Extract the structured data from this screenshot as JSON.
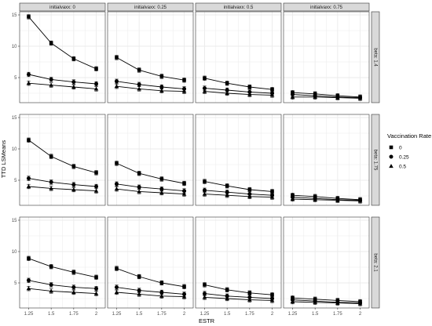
{
  "chart_data": {
    "type": "line",
    "facet_cols": {
      "variable": "initialvaxx",
      "levels": [
        "initialvaxx: 0",
        "initialvaxx: 0.25",
        "initialvaxx: 0.5",
        "initialvaxx: 0.75"
      ]
    },
    "facet_rows": {
      "variable": "beta",
      "levels": [
        "beta: 1.4",
        "beta: 1.75",
        "beta: 2.1"
      ]
    },
    "x": [
      1.25,
      1.5,
      1.75,
      2
    ],
    "x_tick_labels": [
      "1.25",
      "1.5",
      "1.75",
      "2"
    ],
    "xlim": [
      1.15,
      2.1
    ],
    "ylim": [
      1.0,
      15.5
    ],
    "y_ticks": [
      5,
      10,
      15
    ],
    "xlabel": "ESTR",
    "ylabel": "TTD LSMeans",
    "grid": true,
    "legend": {
      "title": "Vaccination Rate",
      "position": "right",
      "entries": [
        {
          "label": "0",
          "shape": "square"
        },
        {
          "label": "0.25",
          "shape": "circle"
        },
        {
          "label": "0.5",
          "shape": "triangle"
        }
      ]
    },
    "panels": [
      {
        "row": 0,
        "col": 0,
        "series": [
          {
            "rate": "0",
            "shape": "square",
            "values": [
              14.7,
              10.5,
              8.0,
              6.4
            ]
          },
          {
            "rate": "0.25",
            "shape": "circle",
            "values": [
              5.5,
              4.7,
              4.3,
              4.0
            ]
          },
          {
            "rate": "0.5",
            "shape": "triangle",
            "values": [
              4.1,
              3.8,
              3.5,
              3.2
            ]
          }
        ]
      },
      {
        "row": 0,
        "col": 1,
        "series": [
          {
            "rate": "0",
            "shape": "square",
            "values": [
              8.2,
              6.2,
              5.2,
              4.6
            ]
          },
          {
            "rate": "0.25",
            "shape": "circle",
            "values": [
              4.4,
              3.9,
              3.5,
              3.2
            ]
          },
          {
            "rate": "0.5",
            "shape": "triangle",
            "values": [
              3.6,
              3.2,
              2.9,
              2.8
            ]
          }
        ]
      },
      {
        "row": 0,
        "col": 2,
        "series": [
          {
            "rate": "0",
            "shape": "square",
            "values": [
              4.9,
              4.1,
              3.5,
              3.1
            ]
          },
          {
            "rate": "0.25",
            "shape": "circle",
            "values": [
              3.3,
              3.0,
              2.7,
              2.5
            ]
          },
          {
            "rate": "0.5",
            "shape": "triangle",
            "values": [
              2.8,
              2.5,
              2.3,
              2.2
            ]
          }
        ]
      },
      {
        "row": 0,
        "col": 3,
        "series": [
          {
            "rate": "0",
            "shape": "square",
            "values": [
              2.6,
              2.4,
              2.1,
              1.9
            ]
          },
          {
            "rate": "0.25",
            "shape": "circle",
            "values": [
              2.3,
              2.1,
              1.9,
              1.8
            ]
          },
          {
            "rate": "0.5",
            "shape": "triangle",
            "values": [
              1.9,
              1.9,
              1.8,
              1.7
            ]
          }
        ]
      },
      {
        "row": 1,
        "col": 0,
        "series": [
          {
            "rate": "0",
            "shape": "square",
            "values": [
              11.4,
              8.8,
              7.2,
              6.2
            ]
          },
          {
            "rate": "0.25",
            "shape": "circle",
            "values": [
              5.3,
              4.7,
              4.3,
              4.0
            ]
          },
          {
            "rate": "0.5",
            "shape": "triangle",
            "values": [
              4.0,
              3.7,
              3.5,
              3.3
            ]
          }
        ]
      },
      {
        "row": 1,
        "col": 1,
        "series": [
          {
            "rate": "0",
            "shape": "square",
            "values": [
              7.7,
              6.1,
              5.2,
              4.5
            ]
          },
          {
            "rate": "0.25",
            "shape": "circle",
            "values": [
              4.4,
              3.9,
              3.6,
              3.3
            ]
          },
          {
            "rate": "0.5",
            "shape": "triangle",
            "values": [
              3.6,
              3.2,
              3.0,
              2.8
            ]
          }
        ]
      },
      {
        "row": 1,
        "col": 2,
        "series": [
          {
            "rate": "0",
            "shape": "square",
            "values": [
              4.8,
              4.1,
              3.5,
              3.2
            ]
          },
          {
            "rate": "0.25",
            "shape": "circle",
            "values": [
              3.4,
              3.1,
              2.8,
              2.6
            ]
          },
          {
            "rate": "0.5",
            "shape": "triangle",
            "values": [
              2.8,
              2.6,
              2.4,
              2.3
            ]
          }
        ]
      },
      {
        "row": 1,
        "col": 3,
        "series": [
          {
            "rate": "0",
            "shape": "square",
            "values": [
              2.6,
              2.4,
              2.1,
              1.9
            ]
          },
          {
            "rate": "0.25",
            "shape": "circle",
            "values": [
              2.3,
              2.1,
              1.9,
              1.8
            ]
          },
          {
            "rate": "0.5",
            "shape": "triangle",
            "values": [
              2.0,
              1.9,
              1.8,
              1.7
            ]
          }
        ]
      },
      {
        "row": 2,
        "col": 0,
        "series": [
          {
            "rate": "0",
            "shape": "square",
            "values": [
              8.9,
              7.6,
              6.7,
              5.9
            ]
          },
          {
            "rate": "0.25",
            "shape": "circle",
            "values": [
              5.4,
              4.7,
              4.3,
              4.1
            ]
          },
          {
            "rate": "0.5",
            "shape": "triangle",
            "values": [
              4.1,
              3.7,
              3.5,
              3.3
            ]
          }
        ]
      },
      {
        "row": 2,
        "col": 1,
        "series": [
          {
            "rate": "0",
            "shape": "square",
            "values": [
              7.3,
              6.0,
              5.0,
              4.4
            ]
          },
          {
            "rate": "0.25",
            "shape": "circle",
            "values": [
              4.3,
              3.8,
              3.5,
              3.2
            ]
          },
          {
            "rate": "0.5",
            "shape": "triangle",
            "values": [
              3.5,
              3.2,
              2.9,
              2.8
            ]
          }
        ]
      },
      {
        "row": 2,
        "col": 2,
        "series": [
          {
            "rate": "0",
            "shape": "square",
            "values": [
              4.7,
              3.9,
              3.4,
              3.1
            ]
          },
          {
            "rate": "0.25",
            "shape": "circle",
            "values": [
              3.3,
              2.9,
              2.7,
              2.5
            ]
          },
          {
            "rate": "0.5",
            "shape": "triangle",
            "values": [
              2.7,
              2.5,
              2.3,
              2.2
            ]
          }
        ]
      },
      {
        "row": 2,
        "col": 3,
        "series": [
          {
            "rate": "0",
            "shape": "square",
            "values": [
              2.6,
              2.4,
              2.2,
              2.0
            ]
          },
          {
            "rate": "0.25",
            "shape": "circle",
            "values": [
              2.3,
              2.1,
              1.9,
              1.8
            ]
          },
          {
            "rate": "0.5",
            "shape": "triangle",
            "values": [
              2.0,
              1.9,
              1.8,
              1.7
            ]
          }
        ]
      }
    ],
    "colors": {
      "background": "#ffffff",
      "panel_border": "#333333",
      "strip_fill": "#d9d9d9",
      "grid": "#ebebeb",
      "series": "#000000"
    }
  }
}
